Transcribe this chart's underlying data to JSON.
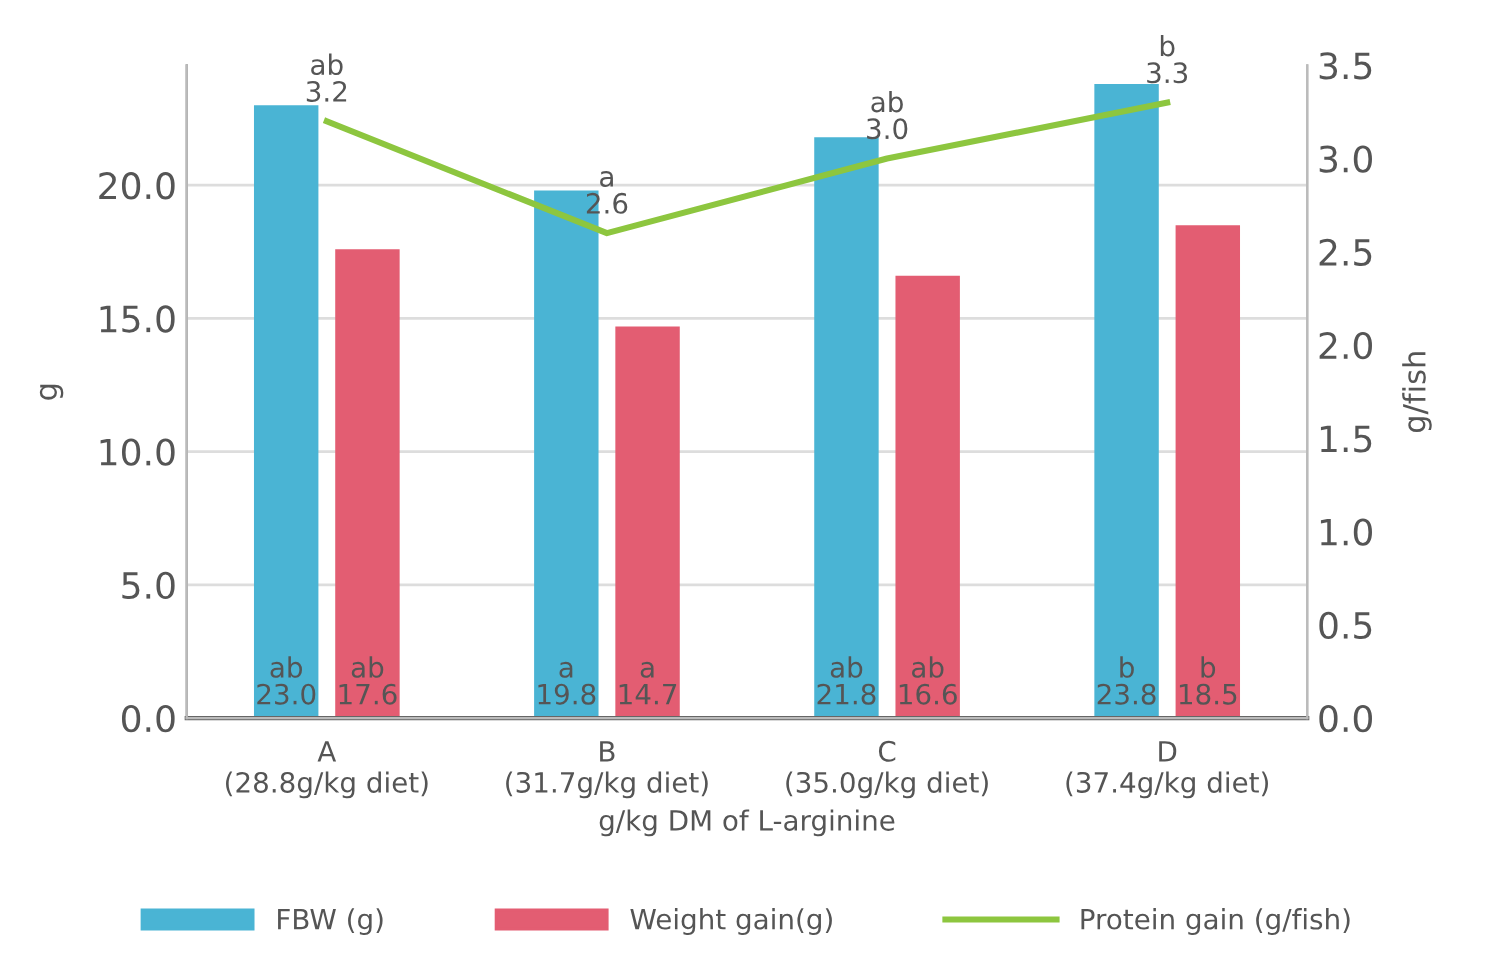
{
  "chart_data": {
    "type": "bar",
    "xlabel": "g/kg DM of L-arginine",
    "ylabel": "g",
    "y2label": "g/fish",
    "categories": [
      "A\n(28.8g/kg diet)",
      "B\n(31.7g/kg diet)",
      "C\n(35.0g/kg diet)",
      "D\n(37.4g/kg diet)"
    ],
    "series": [
      {
        "name": "FBW (g)",
        "color": "#4ab4d4",
        "values": [
          23.0,
          19.8,
          21.8,
          23.8
        ],
        "value_labels": [
          "ab\n23.0",
          "a\n19.8",
          "ab\n21.8",
          "b\n23.8"
        ]
      },
      {
        "name": "Weight gain(g)",
        "color": "#e35d72",
        "values": [
          17.6,
          14.7,
          16.6,
          18.5
        ],
        "value_labels": [
          "ab\n17.6",
          "a\n14.7",
          "ab\n16.6",
          "b\n18.5"
        ]
      },
      {
        "name": "Protein gain (g/fish)",
        "type": "line",
        "axis": "y2",
        "color": "#8dc63f",
        "values": [
          3.2,
          2.6,
          3.0,
          3.3
        ],
        "value_labels": [
          "ab\n3.2",
          "a\n2.6",
          "ab\n3.0",
          "b\n3.3"
        ]
      }
    ],
    "ylim": [
      0,
      24.5
    ],
    "yticks": [
      {
        "value": 0,
        "label": "0.0"
      },
      {
        "value": 5,
        "label": "5.0"
      },
      {
        "value": 10,
        "label": "10.0"
      },
      {
        "value": 15,
        "label": "15.0"
      },
      {
        "value": 20,
        "label": "20.0"
      }
    ],
    "y2lim": [
      0,
      3.5
    ],
    "y2ticks": [
      {
        "value": 0,
        "label": "0.0"
      },
      {
        "value": 0.5,
        "label": "0.5"
      },
      {
        "value": 1,
        "label": "1.0"
      },
      {
        "value": 1.5,
        "label": "1.5"
      },
      {
        "value": 2,
        "label": "2.0"
      },
      {
        "value": 2.5,
        "label": "2.5"
      },
      {
        "value": 3,
        "label": "3.0"
      },
      {
        "value": 3.5,
        "label": "3.5"
      }
    ],
    "grid": "y",
    "legend": "bottom",
    "marker": "none",
    "line_style": "solid"
  }
}
